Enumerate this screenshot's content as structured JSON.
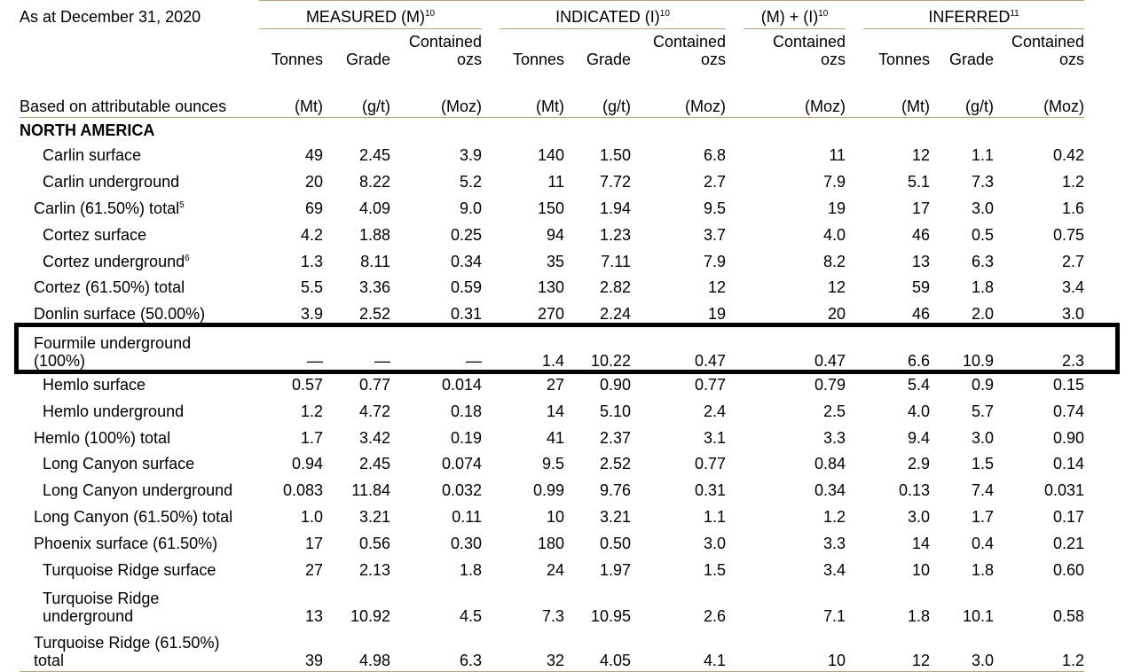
{
  "header": {
    "as_at": "As at December 31, 2020",
    "basis": "Based on attributable ounces",
    "groups": [
      {
        "label": "MEASURED (M)",
        "sup": "10"
      },
      {
        "label": "INDICATED (I)",
        "sup": "10"
      },
      {
        "label": "(M) + (I)",
        "sup": "10"
      },
      {
        "label": "INFERRED",
        "sup": "11"
      }
    ],
    "col_tonnes": "Tonnes",
    "col_grade": "Grade",
    "col_contained_1": "Contained",
    "col_contained_2": "ozs",
    "unit_mt": "(Mt)",
    "unit_gt": "(g/t)",
    "unit_moz": "(Moz)"
  },
  "section": "NORTH AMERICA",
  "rows": [
    {
      "name": "Carlin surface",
      "sup": "",
      "indent": 1,
      "v": [
        "49",
        "2.45",
        "3.9",
        "140",
        "1.50",
        "6.8",
        "11",
        "12",
        "1.1",
        "0.42"
      ]
    },
    {
      "name": "Carlin underground",
      "sup": "",
      "indent": 1,
      "v": [
        "20",
        "8.22",
        "5.2",
        "11",
        "7.72",
        "2.7",
        "7.9",
        "5.1",
        "7.3",
        "1.2"
      ]
    },
    {
      "name": "Carlin (61.50%) total",
      "sup": "5",
      "indent": 0,
      "v": [
        "69",
        "4.09",
        "9.0",
        "150",
        "1.94",
        "9.5",
        "19",
        "17",
        "3.0",
        "1.6"
      ]
    },
    {
      "name": "Cortez surface",
      "sup": "",
      "indent": 1,
      "v": [
        "4.2",
        "1.88",
        "0.25",
        "94",
        "1.23",
        "3.7",
        "4.0",
        "46",
        "0.5",
        "0.75"
      ]
    },
    {
      "name": "Cortez underground",
      "sup": "6",
      "indent": 1,
      "v": [
        "1.3",
        "8.11",
        "0.34",
        "35",
        "7.11",
        "7.9",
        "8.2",
        "13",
        "6.3",
        "2.7"
      ]
    },
    {
      "name": "Cortez (61.50%) total",
      "sup": "",
      "indent": 0,
      "v": [
        "5.5",
        "3.36",
        "0.59",
        "130",
        "2.82",
        "12",
        "12",
        "59",
        "1.8",
        "3.4"
      ]
    },
    {
      "name": "Donlin surface (50.00%)",
      "sup": "",
      "indent": 0,
      "v": [
        "3.9",
        "2.52",
        "0.31",
        "270",
        "2.24",
        "19",
        "20",
        "46",
        "2.0",
        "3.0"
      ]
    },
    {
      "name": "Fourmile underground (100%)",
      "sup": "",
      "indent": 0,
      "tall": true,
      "line1": "Fourmile underground",
      "line2": "(100%)",
      "v": [
        "—",
        "—",
        "—",
        "1.4",
        "10.22",
        "0.47",
        "0.47",
        "6.6",
        "10.9",
        "2.3"
      ]
    },
    {
      "name": "Hemlo surface",
      "sup": "",
      "indent": 1,
      "v": [
        "0.57",
        "0.77",
        "0.014",
        "27",
        "0.90",
        "0.77",
        "0.79",
        "5.4",
        "0.9",
        "0.15"
      ]
    },
    {
      "name": "Hemlo underground",
      "sup": "",
      "indent": 1,
      "v": [
        "1.2",
        "4.72",
        "0.18",
        "14",
        "5.10",
        "2.4",
        "2.5",
        "4.0",
        "5.7",
        "0.74"
      ]
    },
    {
      "name": "Hemlo (100%) total",
      "sup": "",
      "indent": 0,
      "v": [
        "1.7",
        "3.42",
        "0.19",
        "41",
        "2.37",
        "3.1",
        "3.3",
        "9.4",
        "3.0",
        "0.90"
      ]
    },
    {
      "name": "Long Canyon surface",
      "sup": "",
      "indent": 1,
      "v": [
        "0.94",
        "2.45",
        "0.074",
        "9.5",
        "2.52",
        "0.77",
        "0.84",
        "2.9",
        "1.5",
        "0.14"
      ]
    },
    {
      "name": "Long Canyon underground",
      "sup": "",
      "indent": 1,
      "v": [
        "0.083",
        "11.84",
        "0.032",
        "0.99",
        "9.76",
        "0.31",
        "0.34",
        "0.13",
        "7.4",
        "0.031"
      ]
    },
    {
      "name": "Long Canyon (61.50%) total",
      "sup": "",
      "indent": 0,
      "v": [
        "1.0",
        "3.21",
        "0.11",
        "10",
        "3.21",
        "1.1",
        "1.2",
        "3.0",
        "1.7",
        "0.17"
      ]
    },
    {
      "name": "Phoenix surface (61.50%)",
      "sup": "",
      "indent": 0,
      "v": [
        "17",
        "0.56",
        "0.30",
        "180",
        "0.50",
        "3.0",
        "3.3",
        "14",
        "0.4",
        "0.21"
      ]
    },
    {
      "name": "Turquoise Ridge surface",
      "sup": "",
      "indent": 1,
      "v": [
        "27",
        "2.13",
        "1.8",
        "24",
        "1.97",
        "1.5",
        "3.4",
        "10",
        "1.8",
        "0.60"
      ]
    },
    {
      "name": "Turquoise Ridge underground",
      "sup": "",
      "indent": 1,
      "tall": true,
      "line1": "Turquoise Ridge",
      "line2": "underground",
      "v": [
        "13",
        "10.92",
        "4.5",
        "7.3",
        "10.95",
        "2.6",
        "7.1",
        "1.8",
        "10.1",
        "0.58"
      ]
    },
    {
      "name": "Turquoise Ridge (61.50%) total",
      "sup": "",
      "indent": 0,
      "tall": true,
      "line1": "Turquoise Ridge (61.50%)",
      "line2": "total",
      "v": [
        "39",
        "4.98",
        "6.3",
        "32",
        "4.05",
        "4.1",
        "10",
        "12",
        "3.0",
        "1.2"
      ]
    }
  ],
  "highlight_row": "Fourmile underground (100%)"
}
